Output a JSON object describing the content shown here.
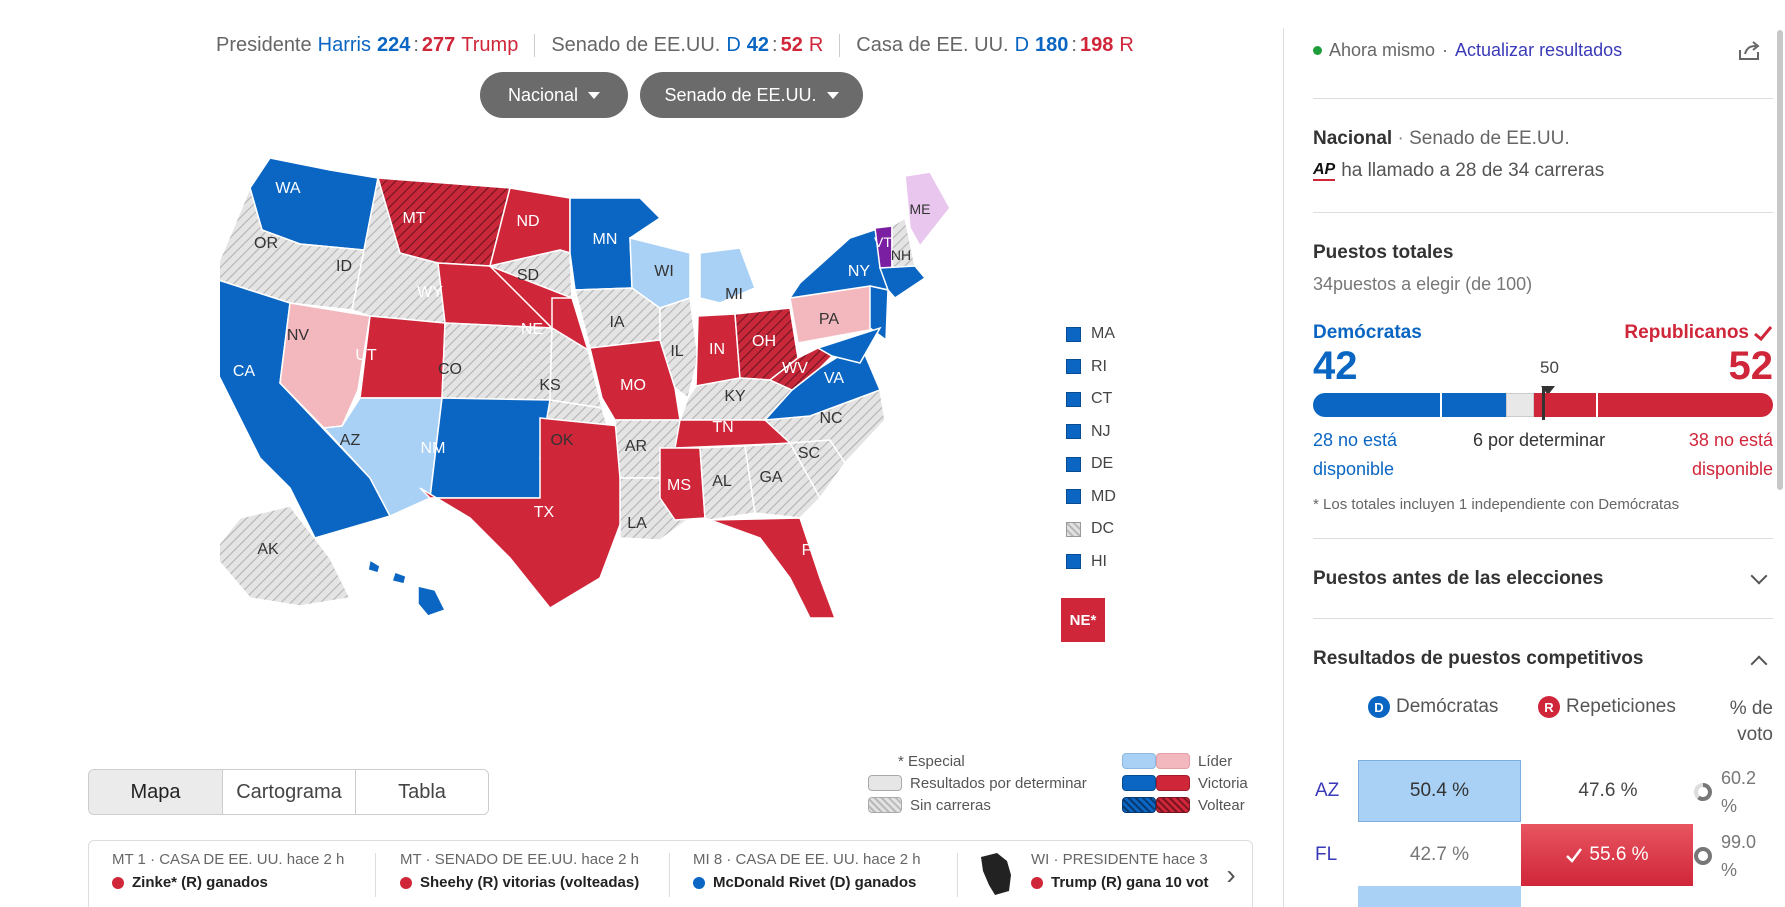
{
  "summary": {
    "president_label": "Presidente",
    "harris": "Harris",
    "harris_ev": "224",
    "sep": ":",
    "trump_ev": "277",
    "trump": "Trump",
    "senate_label": "Senado de EE.UU.",
    "d": "D",
    "senate_d": "42",
    "senate_r": "52",
    "r": "R",
    "house_label": "Casa de EE. UU.",
    "house_d": "180",
    "house_r": "198"
  },
  "filters": {
    "region": "Nacional",
    "race": "Senado de EE.UU."
  },
  "map": {
    "states": {
      "WA": "WA",
      "OR": "OR",
      "CA": "CA",
      "NV": "NV",
      "ID": "ID",
      "MT": "MT",
      "WY": "WY",
      "UT": "UT",
      "AZ": "AZ",
      "CO": "CO",
      "NM": "NM",
      "ND": "ND",
      "SD": "SD",
      "NE": "NE",
      "KS": "KS",
      "OK": "OK",
      "TX": "TX",
      "MN": "MN",
      "IA": "IA",
      "MO": "MO",
      "AR": "AR",
      "LA": "LA",
      "WI": "WI",
      "IL": "IL",
      "MI": "MI",
      "IN": "IN",
      "OH": "OH",
      "KY": "KY",
      "TN": "TN",
      "MS": "MS",
      "AL": "AL",
      "GA": "GA",
      "FL": "FL",
      "SC": "SC",
      "NC": "NC",
      "VA": "VA",
      "WV": "WV",
      "PA": "PA",
      "NY": "NY",
      "VT": "VT",
      "NH": "NH",
      "ME": "ME",
      "AK": "AK"
    },
    "small_states": [
      "MA",
      "RI",
      "CT",
      "NJ",
      "DE",
      "MD",
      "DC",
      "HI"
    ],
    "ne_badge": "NE*"
  },
  "legend": {
    "special": "* Especial",
    "pending": "Resultados por determinar",
    "no_race": "Sin carreras",
    "leader": "Líder",
    "victory": "Victoria",
    "flip": "Voltear"
  },
  "tabs": [
    "Mapa",
    "Cartograma",
    "Tabla"
  ],
  "ticker": [
    {
      "head": "MT 1 · CASA DE EE. UU. hace 2 h",
      "body": "Zinke* (R) ganados",
      "party": "R"
    },
    {
      "head": "MT · SENADO DE EE.UU. hace 2 h",
      "body": "Sheehy (R) vitorias (volteadas)",
      "party": "R"
    },
    {
      "head": "MI 8 · CASA DE EE. UU. hace 2 h",
      "body": "McDonald Rivet (D) ganados",
      "party": "D"
    },
    {
      "head": "WI · PRESIDENTE hace 3",
      "body": "Trump (R) gana 10 vot",
      "party": "R"
    }
  ],
  "panel": {
    "status": "Ahora mismo",
    "dot_sep": "·",
    "refresh": "Actualizar resultados",
    "scope_bold": "Nacional",
    "scope_rest": "Senado de EE.UU.",
    "ap_logo": "AP",
    "ap_text": "ha llamado a 28 de 34 carreras",
    "totals_title": "Puestos totales",
    "totals_sub": "34puestos a elegir (de 100)",
    "dem_label": "Demócratas",
    "rep_label": "Republicanos",
    "dem_seats": "42",
    "rep_seats": "52",
    "majority": "50",
    "dem_na": "28 no está disponible",
    "undetermined": "6 por determinar",
    "rep_na": "38 no está disponible",
    "footnote": "* Los totales incluyen 1 independiente con Demócratas",
    "before_title": "Puestos antes de las elecciones",
    "comp_title": "Resultados de puestos competitivos",
    "col_d_badge": "D",
    "col_d": "Demócratas",
    "col_r_badge": "R",
    "col_r": "Repeticiones",
    "col_pct": "% de voto",
    "rows": [
      {
        "state": "AZ",
        "d": "50.4 %",
        "r": "47.6 %",
        "reported": "60.2 %"
      },
      {
        "state": "FL",
        "d": "42.7 %",
        "r": "55.6 %",
        "reported": "99.0 %"
      }
    ]
  },
  "colors": {
    "dem_win": "#0a66c2",
    "rep_win": "#d0263a",
    "dem_lead": "#a9d0f5",
    "rep_lead": "#f2b8bd",
    "independent": "#7a1fa2",
    "ind_lead": "#e9c6ee",
    "no_race": "#e2e2e2"
  },
  "bar": {
    "dem_na": 28,
    "dem_won": 14,
    "undetermined": 6,
    "rep_won": 14,
    "rep_na": 38,
    "total": 100
  }
}
